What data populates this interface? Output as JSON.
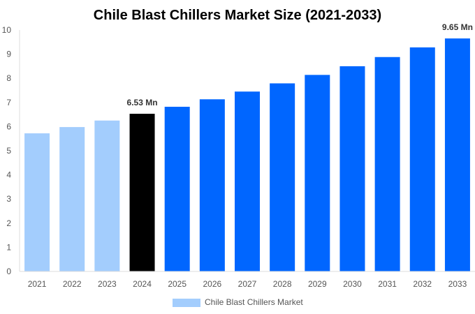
{
  "chart_data": {
    "type": "bar",
    "title": "Chile Blast Chillers Market Size (2021-2033)",
    "categories": [
      "2021",
      "2022",
      "2023",
      "2024",
      "2025",
      "2026",
      "2027",
      "2028",
      "2029",
      "2030",
      "2031",
      "2032",
      "2033"
    ],
    "series": [
      {
        "name": "Chile Blast Chillers Market",
        "values": [
          5.72,
          5.98,
          6.25,
          6.53,
          6.82,
          7.13,
          7.45,
          7.79,
          8.14,
          8.5,
          8.88,
          9.28,
          9.65
        ]
      }
    ],
    "bar_colors": [
      "#a3cdfd",
      "#a3cdfd",
      "#a3cdfd",
      "#000000",
      "#0066ff",
      "#0066ff",
      "#0066ff",
      "#0066ff",
      "#0066ff",
      "#0066ff",
      "#0066ff",
      "#0066ff",
      "#0066ff"
    ],
    "data_labels": {
      "3": "6.53 Mn",
      "12": "9.65 Mn"
    },
    "ylim": [
      0,
      10
    ],
    "yticks": [
      0,
      1,
      2,
      3,
      4,
      5,
      6,
      7,
      8,
      9,
      10
    ],
    "grid": false,
    "legend_position": "bottom",
    "xlabel": "",
    "ylabel": ""
  }
}
